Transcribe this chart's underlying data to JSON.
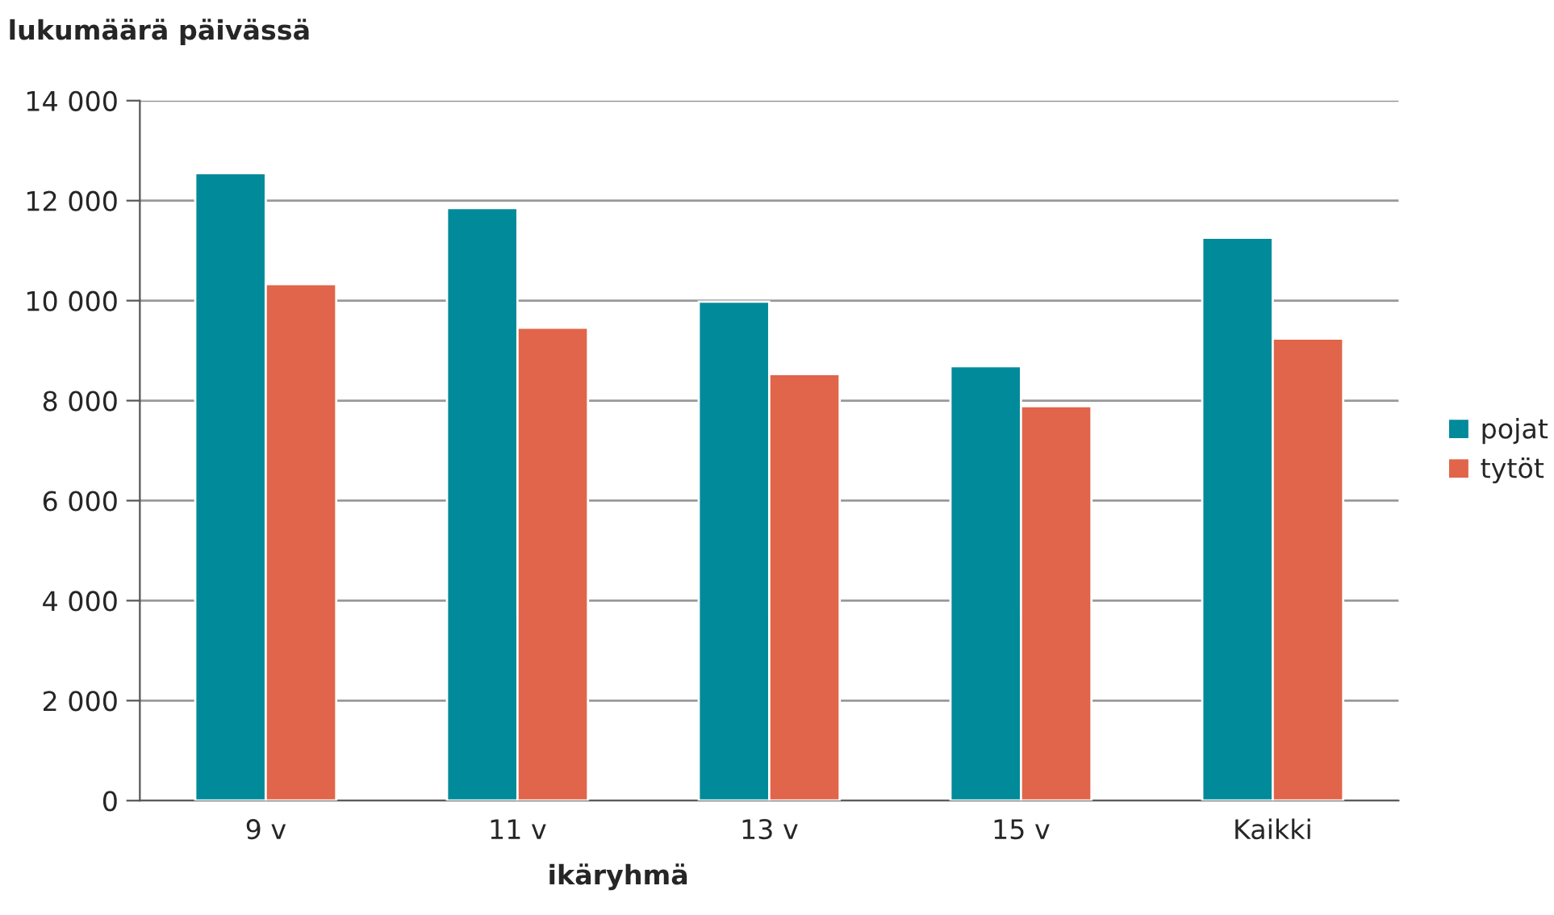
{
  "chart_data": {
    "type": "bar",
    "ylabel": "lukumäärä päivässä",
    "xlabel": "ikäryhmä",
    "categories": [
      "9 v",
      "11 v",
      "13 v",
      "15 v",
      "Kaikki"
    ],
    "series": [
      {
        "name": "pojat",
        "color": "#008a9a",
        "values": [
          12550,
          11850,
          9980,
          8690,
          11260
        ]
      },
      {
        "name": "tytöt",
        "color": "#e0654a",
        "values": [
          10330,
          9460,
          8530,
          7890,
          9240
        ]
      }
    ],
    "ylim": [
      0,
      14000
    ],
    "yticks": [
      {
        "value": 0,
        "label": "0"
      },
      {
        "value": 2000,
        "label": "2 000"
      },
      {
        "value": 4000,
        "label": "4 000"
      },
      {
        "value": 6000,
        "label": "6 000"
      },
      {
        "value": 8000,
        "label": "8 000"
      },
      {
        "value": 10000,
        "label": "10 000"
      },
      {
        "value": 12000,
        "label": "12 000"
      },
      {
        "value": 14000,
        "label": "14 000"
      }
    ],
    "grid": "y",
    "legend": "right"
  }
}
